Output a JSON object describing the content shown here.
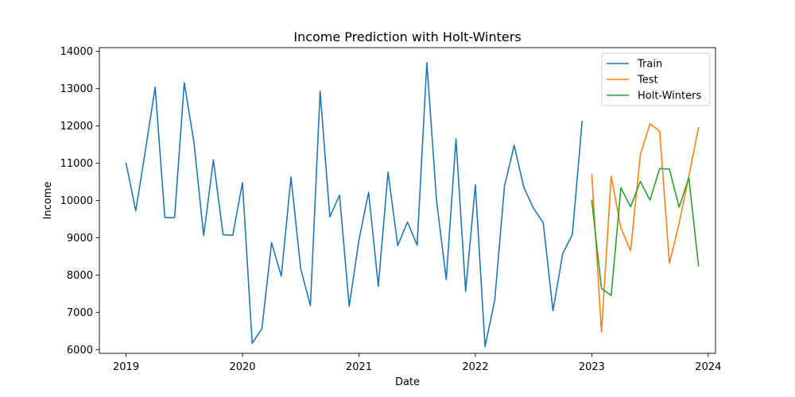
{
  "chart_data": {
    "type": "line",
    "title": "Income Prediction with Holt-Winters",
    "xlabel": "Date",
    "ylabel": "Income",
    "x_tick_labels": [
      "2019",
      "2020",
      "2021",
      "2022",
      "2023",
      "2024"
    ],
    "y_tick_labels": [
      "6000",
      "7000",
      "8000",
      "9000",
      "10000",
      "11000",
      "12000",
      "13000",
      "14000"
    ],
    "xlim": [
      "2018-10",
      "2024-02"
    ],
    "ylim": [
      5900,
      14100
    ],
    "grid": false,
    "legend_position": "top-right",
    "series": [
      {
        "name": "Train",
        "color": "#1f77b4",
        "x": [
          "2019-01",
          "2019-02",
          "2019-03",
          "2019-04",
          "2019-05",
          "2019-06",
          "2019-07",
          "2019-08",
          "2019-09",
          "2019-10",
          "2019-11",
          "2019-12",
          "2020-01",
          "2020-02",
          "2020-03",
          "2020-04",
          "2020-05",
          "2020-06",
          "2020-07",
          "2020-08",
          "2020-09",
          "2020-10",
          "2020-11",
          "2020-12",
          "2021-01",
          "2021-02",
          "2021-03",
          "2021-04",
          "2021-05",
          "2021-06",
          "2021-07",
          "2021-08",
          "2021-09",
          "2021-10",
          "2021-11",
          "2021-12",
          "2022-01",
          "2022-02",
          "2022-03",
          "2022-04",
          "2022-05",
          "2022-06",
          "2022-07",
          "2022-08",
          "2022-09",
          "2022-10",
          "2022-11",
          "2022-12"
        ],
        "y": [
          11000,
          9720,
          11350,
          13040,
          9540,
          9540,
          13160,
          11550,
          9060,
          11090,
          9080,
          9070,
          10480,
          6170,
          6560,
          8870,
          7970,
          10630,
          8170,
          7180,
          12930,
          9560,
          10140,
          7160,
          8940,
          10220,
          7700,
          10760,
          8790,
          9420,
          8800,
          13700,
          10000,
          7880,
          11650,
          7560,
          10420,
          6080,
          7330,
          10380,
          11480,
          10350,
          9790,
          9400,
          7040,
          8570,
          9090,
          12120
        ]
      },
      {
        "name": "Test",
        "color": "#ff7f0e",
        "x": [
          "2023-01",
          "2023-02",
          "2023-03",
          "2023-04",
          "2023-05",
          "2023-06",
          "2023-07",
          "2023-08",
          "2023-09",
          "2023-10",
          "2023-11",
          "2023-12"
        ],
        "y": [
          10690,
          6470,
          10650,
          9260,
          8650,
          11220,
          12060,
          11850,
          8320,
          9380,
          10650,
          11950
        ]
      },
      {
        "name": "Holt-Winters",
        "color": "#2ca02c",
        "x": [
          "2023-01",
          "2023-02",
          "2023-03",
          "2023-04",
          "2023-05",
          "2023-06",
          "2023-07",
          "2023-08",
          "2023-09",
          "2023-10",
          "2023-11",
          "2023-12"
        ],
        "y": [
          10000,
          7640,
          7450,
          10340,
          9830,
          10510,
          10010,
          10860,
          10840,
          9820,
          10610,
          8250
        ]
      }
    ]
  }
}
